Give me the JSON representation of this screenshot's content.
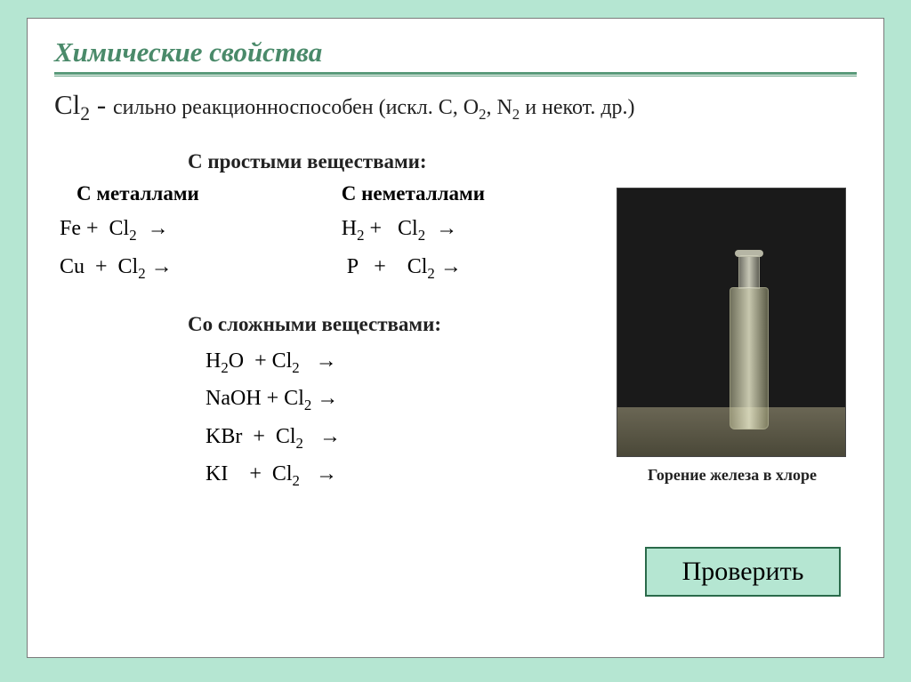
{
  "colors": {
    "page_bg": "#b5e6d2",
    "slide_bg": "#ffffff",
    "slide_border": "#7a7a7a",
    "title_color": "#4a8a6a",
    "underline_color": "#5a9a7a",
    "text_color": "#222222",
    "button_bg": "#b5e6d2",
    "button_border": "#2a6a4a",
    "photo_bg": "#1a1a1a"
  },
  "typography": {
    "title_fontsize": 31,
    "title_style": "italic bold",
    "body_fontsize": 24,
    "subhead_fontsize": 23,
    "caption_fontsize": 18,
    "button_fontsize": 30,
    "font_family": "Georgia, Times New Roman, serif"
  },
  "title": "Химические свойства",
  "intro_formula": "Cl2",
  "intro_dash": " - ",
  "intro_text": "сильно реакционноспособен  (искл. С, О2, N2 и некот. др.)",
  "section_simple": "С простыми веществами:",
  "col_metals_head": "С металлами",
  "col_nonmetals_head": "С неметаллами",
  "metals_eqns": [
    "Fe +  Cl2  →",
    "Cu  +  Cl2 →"
  ],
  "nonmetals_eqns": [
    "H2 +   Cl2  →",
    "P   +    Cl2 →"
  ],
  "section_complex": "Со сложными веществами:",
  "complex_eqns": [
    "H2O  + Cl2   →",
    "NaOH + Cl2 →",
    "KBr  +  Cl2   →",
    "KI    +  Cl2   →"
  ],
  "photo_caption": "Горение железа в хлоре",
  "button_label": "Проверить"
}
